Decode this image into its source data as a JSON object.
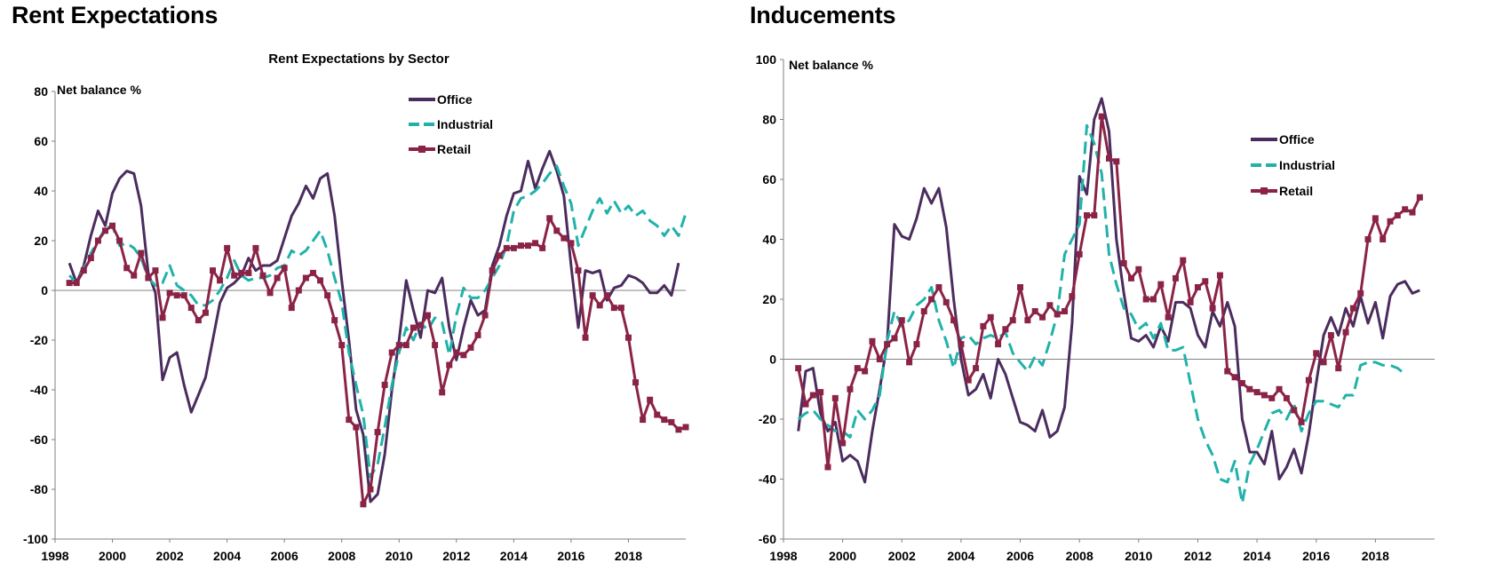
{
  "panels": [
    {
      "heading": "Rent Expectations"
    },
    {
      "heading": "Inducements"
    }
  ],
  "chart_data": [
    {
      "type": "line",
      "title": "Rent Expectations by Sector",
      "ylabel": "Net balance %",
      "xlabel": "",
      "ylim": [
        -100,
        80
      ],
      "xlim": [
        1998,
        2020
      ],
      "yticks": [
        -100,
        -80,
        -60,
        -40,
        -20,
        0,
        20,
        40,
        60,
        80
      ],
      "xticks": [
        1998,
        2000,
        2002,
        2004,
        2006,
        2008,
        2010,
        2012,
        2014,
        2016,
        2018
      ],
      "grid": false,
      "legend_position": "top-right",
      "series": [
        {
          "name": "Office",
          "color": "#4b2c5e",
          "style": "solid",
          "x_start": 1998.5,
          "x_step": 0.25,
          "values": [
            11,
            3,
            10,
            22,
            32,
            26,
            39,
            45,
            48,
            47,
            34,
            7,
            -1,
            -36,
            -27,
            -25,
            -38,
            -49,
            -42,
            -35,
            -20,
            -5,
            1,
            3,
            6,
            13,
            8,
            10,
            10,
            12,
            21,
            30,
            35,
            42,
            37,
            45,
            47,
            30,
            4,
            -20,
            -48,
            -58,
            -85,
            -82,
            -66,
            -40,
            -20,
            4,
            -8,
            -19,
            0,
            -1,
            5,
            -15,
            -28,
            -15,
            -4,
            -10,
            -8,
            10,
            18,
            30,
            39,
            40,
            52,
            41,
            49,
            56,
            48,
            38,
            10,
            -15,
            8,
            7,
            8,
            -4,
            1,
            2,
            6,
            5,
            3,
            -1,
            -1,
            2,
            -2,
            11
          ]
        },
        {
          "name": "Industrial",
          "color": "#20b2aa",
          "style": "dashed",
          "x_start": 1998.5,
          "x_step": 0.25,
          "values": [
            6,
            3,
            9,
            15,
            20,
            25,
            26,
            18,
            19,
            17,
            13,
            5,
            2,
            3,
            10,
            2,
            0,
            -2,
            -6,
            -6,
            -4,
            0,
            5,
            12,
            6,
            4,
            5,
            5,
            6,
            9,
            10,
            16,
            14,
            16,
            20,
            24,
            16,
            5,
            -5,
            -25,
            -38,
            -50,
            -75,
            -70,
            -55,
            -38,
            -25,
            -15,
            -20,
            -13,
            -16,
            -11,
            -13,
            -26,
            -10,
            1,
            -3,
            -3,
            0,
            5,
            10,
            18,
            32,
            37,
            38,
            40,
            43,
            47,
            50,
            42,
            35,
            18,
            25,
            32,
            37,
            31,
            36,
            31,
            34,
            30,
            32,
            28,
            26,
            22,
            26,
            22,
            31
          ]
        },
        {
          "name": "Retail",
          "color": "#8b2347",
          "style": "solid-marker",
          "x_start": 1998.5,
          "x_step": 0.25,
          "values": [
            3,
            3,
            8,
            13,
            20,
            24,
            26,
            20,
            9,
            6,
            15,
            5,
            8,
            -11,
            -1,
            -2,
            -2,
            -7,
            -12,
            -9,
            8,
            4,
            17,
            6,
            7,
            7,
            17,
            6,
            -1,
            5,
            9,
            -7,
            0,
            5,
            7,
            4,
            -2,
            -12,
            -22,
            -52,
            -55,
            -86,
            -80,
            -57,
            -38,
            -25,
            -22,
            -22,
            -15,
            -14,
            -10,
            -22,
            -41,
            -30,
            -25,
            -26,
            -23,
            -18,
            -10,
            8,
            14,
            17,
            17,
            18,
            18,
            19,
            17,
            29,
            24,
            21,
            19,
            8,
            -19,
            -2,
            -6,
            -2,
            -7,
            -7,
            -19,
            -37,
            -52,
            -44,
            -50,
            -52,
            -53,
            -56,
            -55
          ]
        }
      ]
    },
    {
      "type": "line",
      "title": "",
      "ylabel": "Net balance %",
      "xlabel": "",
      "ylim": [
        -60,
        100
      ],
      "xlim": [
        1998,
        2020
      ],
      "yticks": [
        -60,
        -40,
        -20,
        0,
        20,
        40,
        60,
        80,
        100
      ],
      "xticks": [
        1998,
        2000,
        2002,
        2004,
        2006,
        2008,
        2010,
        2012,
        2014,
        2016,
        2018
      ],
      "grid": false,
      "legend_position": "right",
      "series": [
        {
          "name": "Office",
          "color": "#4b2c5e",
          "style": "solid",
          "x_start": 1998.5,
          "x_step": 0.25,
          "values": [
            -24,
            -4,
            -3,
            -18,
            -24,
            -21,
            -34,
            -32,
            -34,
            -41,
            -24,
            -10,
            5,
            45,
            41,
            40,
            47,
            57,
            52,
            57,
            44,
            20,
            0,
            -12,
            -10,
            -5,
            -13,
            0,
            -5,
            -13,
            -21,
            -22,
            -24,
            -17,
            -26,
            -24,
            -16,
            12,
            61,
            55,
            80,
            87,
            76,
            40,
            22,
            7,
            6,
            8,
            4,
            11,
            6,
            19,
            19,
            17,
            8,
            4,
            16,
            11,
            19,
            11,
            -20,
            -31,
            -31,
            -35,
            -24,
            -40,
            -36,
            -30,
            -38,
            -25,
            -8,
            8,
            14,
            8,
            17,
            11,
            21,
            12,
            19,
            7,
            21,
            25,
            26,
            22,
            23
          ]
        },
        {
          "name": "Industrial",
          "color": "#20b2aa",
          "style": "dashed",
          "x_start": 1998.5,
          "x_step": 0.25,
          "values": [
            -20,
            -18,
            -17,
            -20,
            -22,
            -24,
            -24,
            -26,
            -17,
            -20,
            -17,
            -12,
            6,
            16,
            11,
            13,
            18,
            20,
            24,
            13,
            6,
            -3,
            7,
            8,
            5,
            7,
            8,
            7,
            9,
            2,
            -1,
            -4,
            1,
            -2,
            6,
            15,
            35,
            40,
            45,
            78,
            72,
            62,
            35,
            25,
            17,
            15,
            10,
            12,
            7,
            12,
            3,
            3,
            4,
            -8,
            -20,
            -27,
            -32,
            -40,
            -41,
            -34,
            -48,
            -35,
            -30,
            -24,
            -18,
            -17,
            -20,
            -15,
            -24,
            -18,
            -14,
            -14,
            -15,
            -16,
            -12,
            -12,
            -2,
            -1,
            -1,
            -2,
            -2,
            -3,
            -5
          ]
        },
        {
          "name": "Retail",
          "color": "#8b2347",
          "style": "solid-marker",
          "x_start": 1998.5,
          "x_step": 0.25,
          "values": [
            -3,
            -15,
            -12,
            -11,
            -36,
            -13,
            -28,
            -10,
            -3,
            -4,
            6,
            0,
            5,
            7,
            13,
            -1,
            5,
            16,
            20,
            24,
            19,
            13,
            5,
            -7,
            -3,
            11,
            14,
            5,
            10,
            13,
            24,
            13,
            16,
            14,
            18,
            15,
            16,
            21,
            35,
            48,
            48,
            81,
            67,
            66,
            32,
            27,
            30,
            20,
            20,
            25,
            14,
            27,
            33,
            19,
            24,
            26,
            17,
            28,
            -4,
            -6,
            -8,
            -10,
            -11,
            -12,
            -13,
            -10,
            -13,
            -17,
            -21,
            -7,
            2,
            -1,
            8,
            -3,
            9,
            17,
            22,
            40,
            47,
            40,
            46,
            48,
            50,
            49,
            54
          ]
        }
      ]
    }
  ]
}
